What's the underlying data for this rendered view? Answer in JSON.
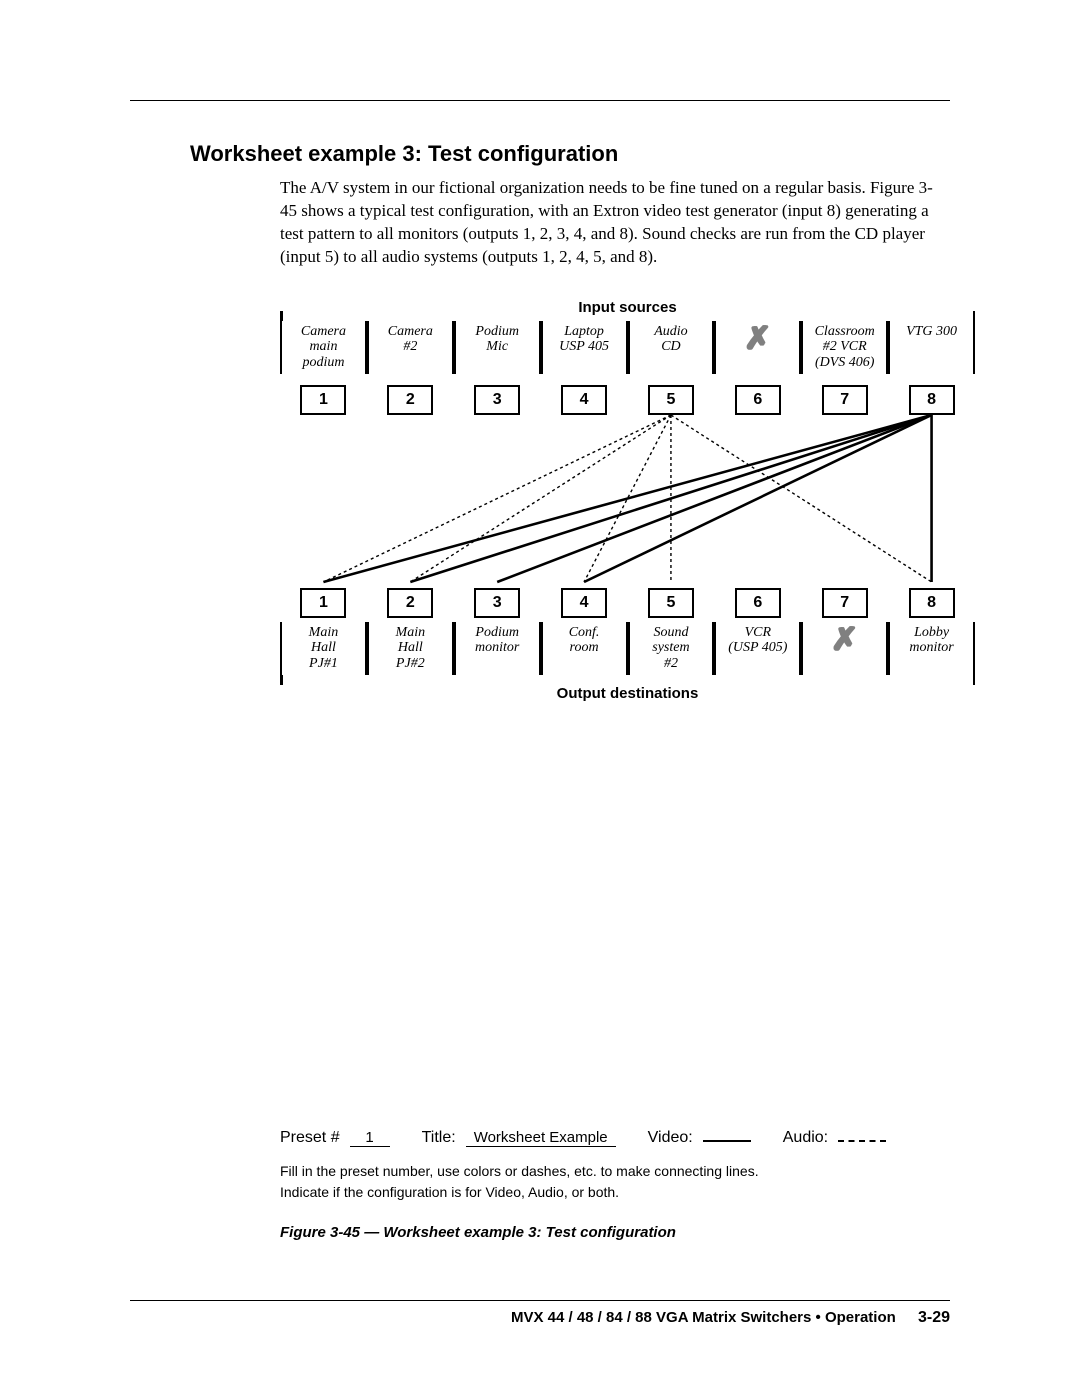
{
  "heading": "Worksheet example 3: Test configuration",
  "body_text": "The A/V system in our fictional organization needs to be fine tuned on a regular basis.  Figure 3-45 shows a typical test configuration, with an Extron video test generator (input 8) generating a test pattern to all monitors (outputs 1, 2, 3, 4, and 8).  Sound checks are run from the CD player (input 5) to all audio systems (outputs 1, 2, 4, 5, and 8).",
  "diagram": {
    "inputs_label": "Input  sources",
    "outputs_label": "Output destinations",
    "inputs": [
      {
        "num": "1",
        "label": "Camera\nmain\npodium",
        "x": false
      },
      {
        "num": "2",
        "label": "Camera\n#2",
        "x": false
      },
      {
        "num": "3",
        "label": "Podium\nMic",
        "x": false
      },
      {
        "num": "4",
        "label": "Laptop\nUSP 405",
        "x": false
      },
      {
        "num": "5",
        "label": "Audio\nCD",
        "x": false
      },
      {
        "num": "6",
        "label": "",
        "x": true
      },
      {
        "num": "7",
        "label": "Classroom\n#2 VCR\n(DVS 406)",
        "x": false
      },
      {
        "num": "8",
        "label": "VTG 300",
        "x": false
      }
    ],
    "outputs": [
      {
        "num": "1",
        "label": "Main\nHall\nPJ#1",
        "x": false
      },
      {
        "num": "2",
        "label": "Main\nHall\nPJ#2",
        "x": false
      },
      {
        "num": "3",
        "label": "Podium\nmonitor",
        "x": false
      },
      {
        "num": "4",
        "label": "Conf.\nroom",
        "x": false
      },
      {
        "num": "5",
        "label": "Sound\nsystem\n#2",
        "x": false
      },
      {
        "num": "6",
        "label": "VCR\n(USP 405)",
        "x": false
      },
      {
        "num": "7",
        "label": "",
        "x": true
      },
      {
        "num": "8",
        "label": "Lobby\nmonitor",
        "x": false
      }
    ],
    "video_connections": [
      {
        "from": 8,
        "to": 1
      },
      {
        "from": 8,
        "to": 2
      },
      {
        "from": 8,
        "to": 3
      },
      {
        "from": 8,
        "to": 4
      },
      {
        "from": 8,
        "to": 8
      }
    ],
    "audio_connections": [
      {
        "from": 5,
        "to": 1
      },
      {
        "from": 5,
        "to": 2
      },
      {
        "from": 5,
        "to": 4
      },
      {
        "from": 5,
        "to": 5
      },
      {
        "from": 5,
        "to": 8
      }
    ],
    "line_style": {
      "video_stroke": "#000000",
      "video_width": 2.6,
      "video_dash": "none",
      "audio_stroke": "#000000",
      "audio_width": 1.4,
      "audio_dash": "3,3"
    }
  },
  "legend": {
    "preset_label": "Preset #",
    "preset_value": "1",
    "title_label": "Title:",
    "title_value": "Worksheet Example",
    "video_label": "Video:",
    "audio_label": "Audio:"
  },
  "instructions": "Fill in the preset number, use colors or dashes, etc. to make connecting lines.\nIndicate if the configuration is for Video, Audio, or both.",
  "figure_caption": "Figure 3-45 — Worksheet example 3: Test configuration",
  "footer": {
    "text": "MVX 44 / 48 / 84 / 88 VGA Matrix Switchers • Operation",
    "page": "3-29"
  },
  "colors": {
    "text": "#000000",
    "bg": "#ffffff",
    "x_gray": "#808080"
  },
  "fonts": {
    "body_pt": 17,
    "heading_pt": 22,
    "label_pt": 14
  }
}
